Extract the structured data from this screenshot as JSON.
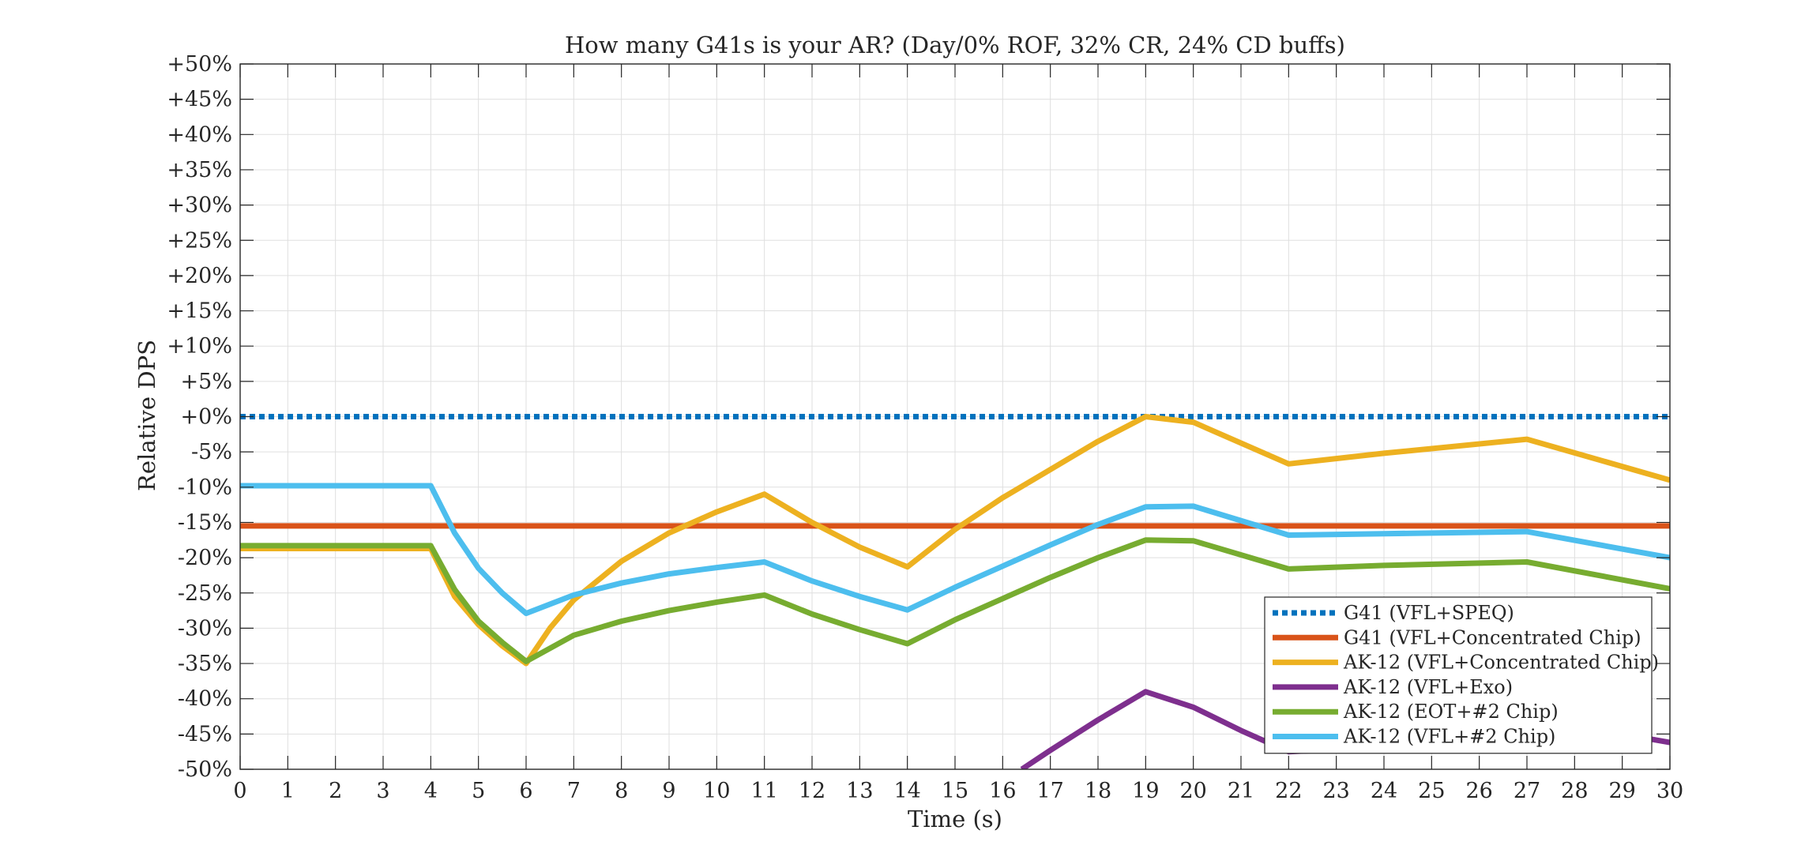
{
  "chart_data": {
    "type": "line",
    "title": "How many G41s is your AR? (Day/0% ROF, 32% CR, 24% CD buffs)",
    "xlabel": "Time (s)",
    "ylabel": "Relative DPS",
    "xlim": [
      0,
      30
    ],
    "ylim": [
      -50,
      50
    ],
    "xticks": [
      0,
      1,
      2,
      3,
      4,
      5,
      6,
      7,
      8,
      9,
      10,
      11,
      12,
      13,
      14,
      15,
      16,
      17,
      18,
      19,
      20,
      21,
      22,
      23,
      24,
      25,
      26,
      27,
      28,
      29,
      30
    ],
    "xtick_labels": [
      "0",
      "1",
      "2",
      "3",
      "4",
      "5",
      "6",
      "7",
      "8",
      "9",
      "10",
      "11",
      "12",
      "13",
      "14",
      "15",
      "16",
      "17",
      "18",
      "19",
      "20",
      "21",
      "22",
      "23",
      "24",
      "25",
      "26",
      "27",
      "28",
      "29",
      "30"
    ],
    "yticks": [
      -50,
      -45,
      -40,
      -35,
      -30,
      -25,
      -20,
      -15,
      -10,
      -5,
      0,
      5,
      10,
      15,
      20,
      25,
      30,
      35,
      40,
      45,
      50
    ],
    "ytick_labels": [
      "-50%",
      "-45%",
      "-40%",
      "-35%",
      "-30%",
      "-25%",
      "-20%",
      "-15%",
      "-10%",
      "-5%",
      "+0%",
      "+5%",
      "+10%",
      "+15%",
      "+20%",
      "+25%",
      "+30%",
      "+35%",
      "+40%",
      "+45%",
      "+50%"
    ],
    "grid": true,
    "legend_position": "bottom-right",
    "series": [
      {
        "name": "G41 (VFL+SPEQ)",
        "color": "#0072BD",
        "dash": "dotted",
        "points": [
          [
            0,
            0
          ],
          [
            30,
            0
          ]
        ]
      },
      {
        "name": "G41 (VFL+Concentrated Chip)",
        "color": "#D95319",
        "dash": "solid",
        "points": [
          [
            0,
            -15.5
          ],
          [
            30,
            -15.5
          ]
        ]
      },
      {
        "name": "AK-12 (VFL+Concentrated Chip)",
        "color": "#EDB120",
        "dash": "solid",
        "points": [
          [
            0,
            -18.7
          ],
          [
            4,
            -18.7
          ],
          [
            4.5,
            -25.5
          ],
          [
            5,
            -29.5
          ],
          [
            5.5,
            -32.5
          ],
          [
            6,
            -35
          ],
          [
            6.5,
            -30
          ],
          [
            7,
            -26
          ],
          [
            8,
            -20.5
          ],
          [
            9,
            -16.5
          ],
          [
            10,
            -13.5
          ],
          [
            11,
            -11
          ],
          [
            12,
            -15
          ],
          [
            13,
            -18.5
          ],
          [
            14,
            -21.3
          ],
          [
            15,
            -16
          ],
          [
            16,
            -11.5
          ],
          [
            17,
            -7.5
          ],
          [
            18,
            -3.5
          ],
          [
            19,
            0
          ],
          [
            20,
            -0.8
          ],
          [
            22,
            -6.7
          ],
          [
            24,
            -5.2
          ],
          [
            27,
            -3.2
          ],
          [
            30,
            -9
          ]
        ]
      },
      {
        "name": "AK-12 (VFL+Exo)",
        "color": "#7E2F8E",
        "dash": "solid",
        "points": [
          [
            16.4,
            -50
          ],
          [
            17,
            -47.3
          ],
          [
            18,
            -43
          ],
          [
            19,
            -39
          ],
          [
            20,
            -41.2
          ],
          [
            21,
            -44.5
          ],
          [
            22,
            -47.5
          ],
          [
            23,
            -47.2
          ],
          [
            24,
            -46.7
          ],
          [
            25,
            -46.2
          ],
          [
            26,
            -45.8
          ],
          [
            27,
            -45.4
          ],
          [
            28,
            -44.8
          ],
          [
            29,
            -45
          ],
          [
            30,
            -46.2
          ]
        ]
      },
      {
        "name": "AK-12 (EOT+#2 Chip)",
        "color": "#77AC30",
        "dash": "solid",
        "points": [
          [
            0,
            -18.3
          ],
          [
            4,
            -18.3
          ],
          [
            4.5,
            -24.5
          ],
          [
            5,
            -29
          ],
          [
            5.5,
            -32
          ],
          [
            6,
            -34.7
          ],
          [
            7,
            -31
          ],
          [
            8,
            -29
          ],
          [
            9,
            -27.5
          ],
          [
            10,
            -26.3
          ],
          [
            11,
            -25.3
          ],
          [
            12,
            -28
          ],
          [
            13,
            -30.2
          ],
          [
            14,
            -32.2
          ],
          [
            15,
            -28.8
          ],
          [
            16,
            -25.8
          ],
          [
            17,
            -22.8
          ],
          [
            18,
            -20
          ],
          [
            19,
            -17.5
          ],
          [
            20,
            -17.6
          ],
          [
            22,
            -21.6
          ],
          [
            24,
            -21.1
          ],
          [
            27,
            -20.6
          ],
          [
            30,
            -24.4
          ]
        ]
      },
      {
        "name": "AK-12 (VFL+#2 Chip)",
        "color": "#4DBEEE",
        "dash": "solid",
        "points": [
          [
            0,
            -9.8
          ],
          [
            4,
            -9.8
          ],
          [
            4.5,
            -16.5
          ],
          [
            5,
            -21.5
          ],
          [
            5.5,
            -25
          ],
          [
            6,
            -27.9
          ],
          [
            7,
            -25.3
          ],
          [
            8,
            -23.6
          ],
          [
            9,
            -22.3
          ],
          [
            10,
            -21.4
          ],
          [
            11,
            -20.6
          ],
          [
            12,
            -23.3
          ],
          [
            13,
            -25.5
          ],
          [
            14,
            -27.4
          ],
          [
            15,
            -24.2
          ],
          [
            16,
            -21.2
          ],
          [
            17,
            -18.2
          ],
          [
            18,
            -15.3
          ],
          [
            19,
            -12.8
          ],
          [
            20,
            -12.7
          ],
          [
            22,
            -16.8
          ],
          [
            24,
            -16.6
          ],
          [
            27,
            -16.3
          ],
          [
            30,
            -20
          ]
        ]
      }
    ]
  }
}
